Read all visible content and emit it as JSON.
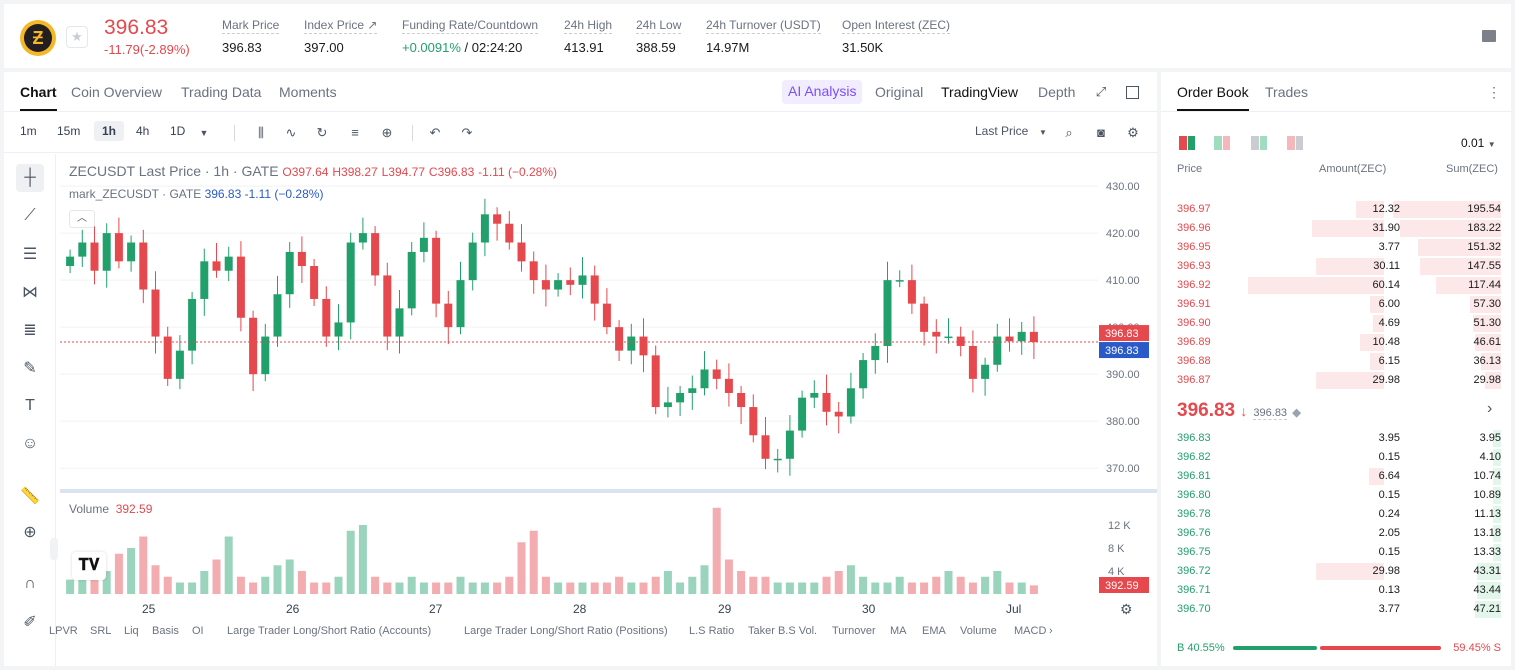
{
  "header": {
    "last_price": "396.83",
    "change": "-11.79(-2.89%)",
    "stats": [
      {
        "label": "Mark Price",
        "value": "396.83"
      },
      {
        "label": "Index Price ↗",
        "value": "397.00"
      },
      {
        "label": "Funding Rate/Countdown",
        "value_green": "+0.0091%",
        "value": "/ 02:24:20"
      },
      {
        "label": "24h High",
        "value": "413.91"
      },
      {
        "label": "24h Low",
        "value": "388.59"
      },
      {
        "label": "24h Turnover (USDT)",
        "value": "14.97M"
      },
      {
        "label": "Open Interest (ZEC)",
        "value": "31.50K"
      }
    ]
  },
  "chart_tabs": [
    "Chart",
    "Coin Overview",
    "Trading Data",
    "Moments"
  ],
  "view_tabs": {
    "ai": "AI Analysis",
    "original": "Original",
    "tradingview": "TradingView",
    "depth": "Depth"
  },
  "intervals": [
    "1m",
    "15m",
    "1h",
    "4h",
    "1D"
  ],
  "price_type": "Last Price",
  "legend": {
    "symbol": "ZECUSDT Last Price · 1h · GATE",
    "o": "O397.64",
    "h": "H398.27",
    "l": "L394.77",
    "c": "C396.83",
    "chg": "-1.11 (−0.28%)",
    "mark_name": "mark_ZECUSDT · GATE",
    "mark_val": "396.83",
    "mark_chg": "-1.11 (−0.28%)"
  },
  "volume_label": "Volume",
  "volume_value": "392.59",
  "price_axis": [
    "430.00",
    "420.00",
    "410.00",
    "400.00",
    "390.00",
    "380.00",
    "370.00"
  ],
  "volume_axis": [
    "12 K",
    "8 K",
    "4 K"
  ],
  "x_axis": [
    "25",
    "26",
    "27",
    "28",
    "29",
    "30",
    "Jul"
  ],
  "price_tags": {
    "last": "396.83",
    "mark": "396.83",
    "volume": "392.59"
  },
  "indicators": [
    "LPVR",
    "SRL",
    "Liq",
    "Basis",
    "OI",
    "Large Trader Long/Short Ratio (Accounts)",
    "Large Trader Long/Short Ratio (Positions)",
    "L.S Ratio",
    "Taker B.S Vol.",
    "Turnover",
    "MA",
    "EMA",
    "Volume",
    "MACD"
  ],
  "orderbook": {
    "tabs": [
      "Order Book",
      "Trades"
    ],
    "precision": "0.01",
    "headers": [
      "Price",
      "Amount(ZEC)",
      "Sum(ZEC)"
    ],
    "asks": [
      [
        "396.97",
        "12.32",
        "195.54"
      ],
      [
        "396.96",
        "31.90",
        "183.22"
      ],
      [
        "396.95",
        "3.77",
        "151.32"
      ],
      [
        "396.93",
        "30.11",
        "147.55"
      ],
      [
        "396.92",
        "60.14",
        "117.44"
      ],
      [
        "396.91",
        "6.00",
        "57.30"
      ],
      [
        "396.90",
        "4.69",
        "51.30"
      ],
      [
        "396.89",
        "10.48",
        "46.61"
      ],
      [
        "396.88",
        "6.15",
        "36.13"
      ],
      [
        "396.87",
        "29.98",
        "29.98"
      ]
    ],
    "mid_price": "396.83",
    "mid_arrow": "↓",
    "mid_mark": "396.83",
    "bids": [
      [
        "396.83",
        "3.95",
        "3.95"
      ],
      [
        "396.82",
        "0.15",
        "4.10"
      ],
      [
        "396.81",
        "6.64",
        "10.74"
      ],
      [
        "396.80",
        "0.15",
        "10.89"
      ],
      [
        "396.78",
        "0.24",
        "11.13"
      ],
      [
        "396.76",
        "2.05",
        "13.18"
      ],
      [
        "396.75",
        "0.15",
        "13.33"
      ],
      [
        "396.72",
        "29.98",
        "43.31"
      ],
      [
        "396.71",
        "0.13",
        "43.44"
      ],
      [
        "396.70",
        "3.77",
        "47.21"
      ]
    ],
    "buy_ratio": "B 40.55%",
    "sell_ratio": "59.45% S",
    "buy_pct": 40.55
  },
  "colors": {
    "up": "#22a06b",
    "down": "#e5484d",
    "mark": "#2a5ac8"
  },
  "chart_data": {
    "type": "candlestick",
    "ylim": [
      366,
      433
    ],
    "x_ticks": [
      "25",
      "26",
      "27",
      "28",
      "29",
      "30",
      "Jul"
    ],
    "close": [
      415,
      418,
      412,
      420,
      414,
      418,
      408,
      398,
      389,
      395,
      406,
      414,
      412,
      415,
      402,
      390,
      398,
      407,
      416,
      413,
      406,
      398,
      401,
      418,
      420,
      411,
      398,
      404,
      416,
      419,
      405,
      400,
      410,
      418,
      424,
      422,
      418,
      414,
      410,
      408,
      410,
      409,
      411,
      405,
      400,
      395,
      398,
      394,
      383,
      384,
      386,
      387,
      391,
      389,
      386,
      383,
      377,
      372,
      372,
      378,
      385,
      386,
      382,
      381,
      387,
      393,
      396,
      410,
      410,
      405,
      399,
      398,
      398,
      396,
      389,
      392,
      398,
      397,
      399,
      396.83
    ],
    "volume": [
      2.5,
      3.5,
      5,
      4,
      7,
      8,
      10,
      5,
      3,
      2,
      2,
      4,
      6,
      10,
      3,
      2,
      3,
      5,
      6,
      4,
      2,
      2,
      3,
      11,
      12,
      3,
      2,
      2,
      3,
      2,
      2,
      2,
      3,
      2,
      2,
      2,
      3,
      9,
      11,
      3,
      2,
      2,
      2,
      2,
      2,
      3,
      2,
      2,
      3,
      4,
      2,
      3,
      5,
      15,
      6,
      4,
      3,
      3,
      2,
      2,
      2,
      2,
      3,
      4,
      5,
      3,
      2,
      2,
      3,
      2,
      2,
      3,
      4,
      3,
      2,
      3,
      4,
      2,
      2,
      1.5
    ]
  }
}
